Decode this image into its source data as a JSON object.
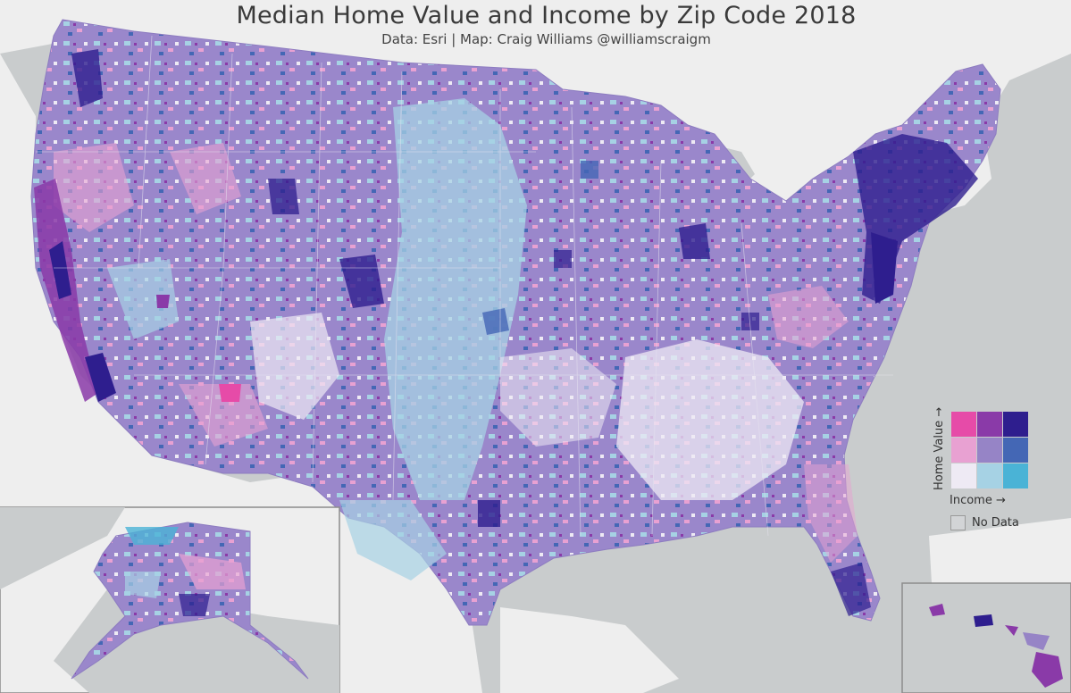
{
  "title": "Median Home Value and Income by Zip Code 2018",
  "subtitle": "Data: Esri | Map: Craig Williams @williamscraigm",
  "legend": {
    "y_axis_label": "Home Value →",
    "x_axis_label": "Income →",
    "no_data_label": "No Data",
    "grid_colors": [
      [
        "#e64ba8",
        "#8a3aa8",
        "#2e1e8e"
      ],
      [
        "#e8a1d2",
        "#9684c6",
        "#4467b5"
      ],
      [
        "#eeeaf4",
        "#a6d2e4",
        "#4ab3d6"
      ]
    ],
    "no_data_color": "#d2d4d6"
  },
  "colors": {
    "ocean": "#c9cccd",
    "land_background": "#eeeeee",
    "dominant_fill": "#9a87cb",
    "inset_border": "#8c8c8c"
  }
}
